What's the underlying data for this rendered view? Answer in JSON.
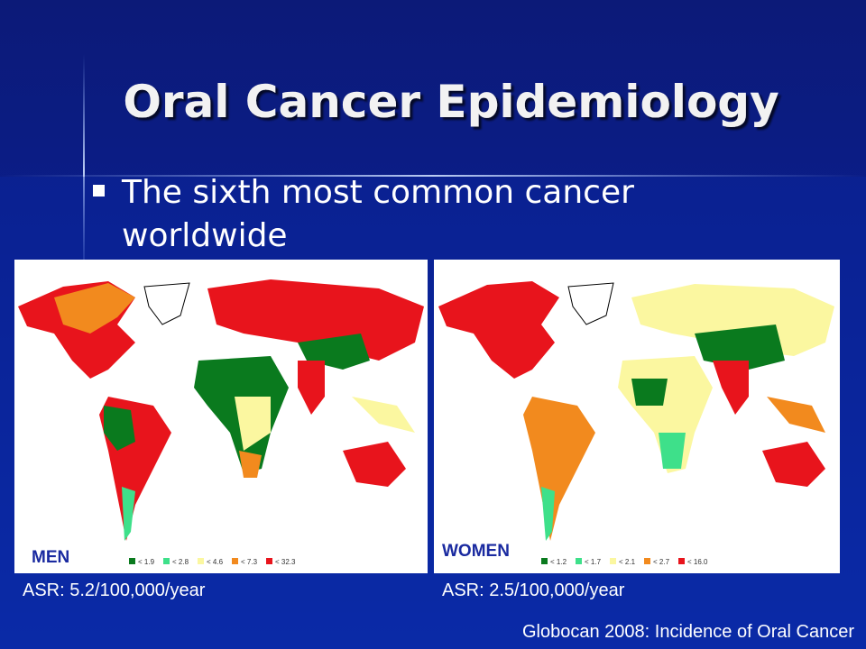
{
  "title": "Oral Cancer Epidemiology",
  "bullet": [
    "The sixth most common cancer",
    "worldwide"
  ],
  "maps": [
    {
      "label": "MEN",
      "asr": "ASR: 5.2/100,000/year",
      "legend": [
        {
          "color": "#0a7a1e",
          "label": "< 1.9"
        },
        {
          "color": "#3ee08a",
          "label": "< 2.8"
        },
        {
          "color": "#fbf7a0",
          "label": "< 4.6"
        },
        {
          "color": "#f28a1e",
          "label": "< 7.3"
        },
        {
          "color": "#e8141c",
          "label": "< 32.3"
        }
      ]
    },
    {
      "label": "WOMEN",
      "asr": "ASR: 2.5/100,000/year",
      "legend": [
        {
          "color": "#0a7a1e",
          "label": "< 1.2"
        },
        {
          "color": "#3ee08a",
          "label": "< 1.7"
        },
        {
          "color": "#fbf7a0",
          "label": "< 2.1"
        },
        {
          "color": "#f28a1e",
          "label": "< 2.7"
        },
        {
          "color": "#e8141c",
          "label": "< 16.0"
        }
      ]
    }
  ],
  "source": "Globocan 2008: Incidence of Oral Cancer"
}
